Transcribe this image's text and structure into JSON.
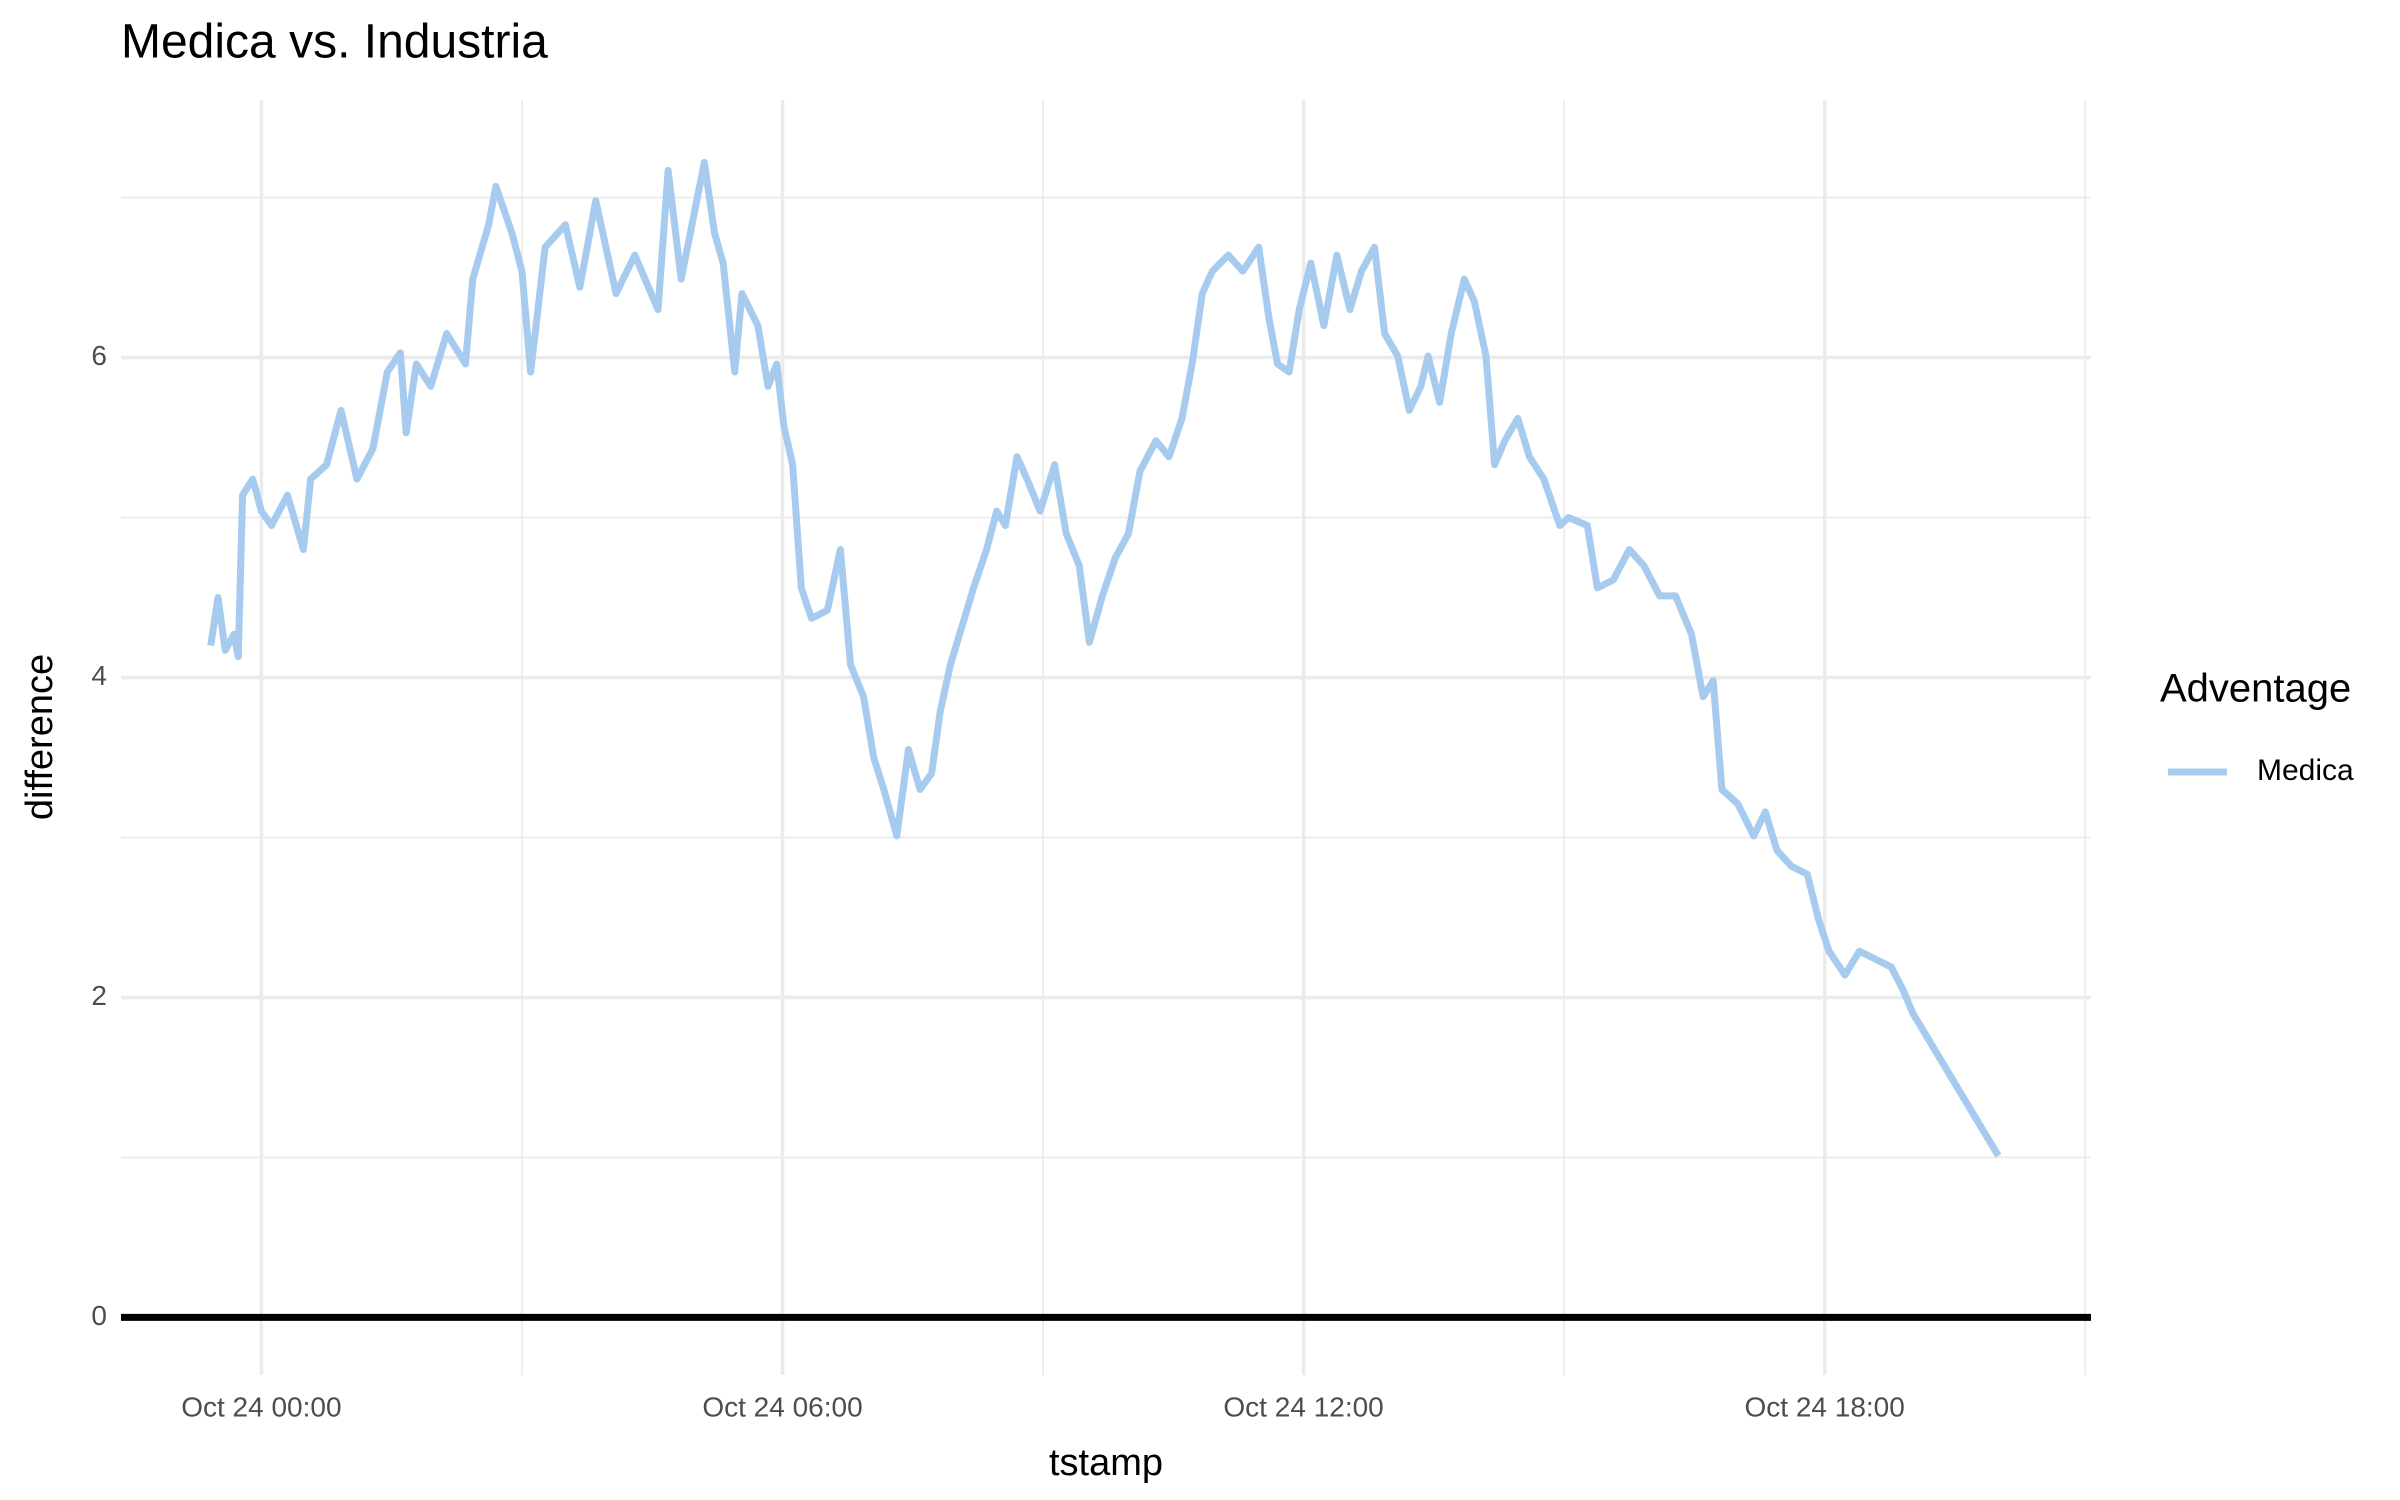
{
  "chart_data": {
    "type": "line",
    "title": "Medica vs. Industria",
    "x_label": "tstamp",
    "y_label": "difference",
    "legend_title": "Adventage",
    "legend_position": "right",
    "grid": true,
    "minor_grid": true,
    "hline": 0,
    "hline_color": "#000000",
    "xlim": [
      "Oct 23 22:23",
      "Oct 24 21:04"
    ],
    "xticks": [
      "Oct 24 00:00",
      "Oct 24 06:00",
      "Oct 24 12:00",
      "Oct 24 18:00"
    ],
    "ylim": [
      -0.36,
      7.61
    ],
    "yticks": [
      0,
      2,
      4,
      6
    ],
    "x": [
      "Oct 23 23:25",
      "Oct 23 23:30",
      "Oct 23 23:35",
      "Oct 23 23:41",
      "Oct 23 23:44",
      "Oct 23 23:47",
      "Oct 23 23:54",
      "Oct 24 00:00",
      "Oct 24 00:07",
      "Oct 24 00:18",
      "Oct 24 00:29",
      "Oct 24 00:34",
      "Oct 24 00:45",
      "Oct 24 00:55",
      "Oct 24 01:06",
      "Oct 24 01:17",
      "Oct 24 01:27",
      "Oct 24 01:36",
      "Oct 24 01:40",
      "Oct 24 01:47",
      "Oct 24 01:57",
      "Oct 24 02:08",
      "Oct 24 02:21",
      "Oct 24 02:26",
      "Oct 24 02:37",
      "Oct 24 02:42",
      "Oct 24 02:53",
      "Oct 24 03:00",
      "Oct 24 03:06",
      "Oct 24 03:16",
      "Oct 24 03:30",
      "Oct 24 03:40",
      "Oct 24 03:51",
      "Oct 24 04:05",
      "Oct 24 04:18",
      "Oct 24 04:34",
      "Oct 24 04:41",
      "Oct 24 04:50",
      "Oct 24 05:06",
      "Oct 24 05:13",
      "Oct 24 05:19",
      "Oct 24 05:27",
      "Oct 24 05:32",
      "Oct 24 05:43",
      "Oct 24 05:50",
      "Oct 24 05:56",
      "Oct 24 06:01",
      "Oct 24 06:07",
      "Oct 24 06:13",
      "Oct 24 06:20",
      "Oct 24 06:31",
      "Oct 24 06:40",
      "Oct 24 06:47",
      "Oct 24 06:56",
      "Oct 24 07:03",
      "Oct 24 07:10",
      "Oct 24 07:19",
      "Oct 24 07:27",
      "Oct 24 07:35",
      "Oct 24 07:43",
      "Oct 24 07:49",
      "Oct 24 07:56",
      "Oct 24 08:04",
      "Oct 24 08:12",
      "Oct 24 08:21",
      "Oct 24 08:28",
      "Oct 24 08:34",
      "Oct 24 08:42",
      "Oct 24 08:49",
      "Oct 24 08:58",
      "Oct 24 09:08",
      "Oct 24 09:16",
      "Oct 24 09:25",
      "Oct 24 09:32",
      "Oct 24 09:41",
      "Oct 24 09:50",
      "Oct 24 09:59",
      "Oct 24 10:07",
      "Oct 24 10:18",
      "Oct 24 10:27",
      "Oct 24 10:36",
      "Oct 24 10:43",
      "Oct 24 10:50",
      "Oct 24 10:57",
      "Oct 24 11:08",
      "Oct 24 11:18",
      "Oct 24 11:29",
      "Oct 24 11:36",
      "Oct 24 11:42",
      "Oct 24 11:50",
      "Oct 24 11:57",
      "Oct 24 12:05",
      "Oct 24 12:14",
      "Oct 24 12:23",
      "Oct 24 12:32",
      "Oct 24 12:40",
      "Oct 24 12:49",
      "Oct 24 12:56",
      "Oct 24 13:05",
      "Oct 24 13:13",
      "Oct 24 13:21",
      "Oct 24 13:26",
      "Oct 24 13:34",
      "Oct 24 13:42",
      "Oct 24 13:51",
      "Oct 24 13:58",
      "Oct 24 14:06",
      "Oct 24 14:12",
      "Oct 24 14:19",
      "Oct 24 14:28",
      "Oct 24 14:36",
      "Oct 24 14:46",
      "Oct 24 14:57",
      "Oct 24 15:03",
      "Oct 24 15:16",
      "Oct 24 15:23",
      "Oct 24 15:34",
      "Oct 24 15:45",
      "Oct 24 15:55",
      "Oct 24 16:06",
      "Oct 24 16:17",
      "Oct 24 16:28",
      "Oct 24 16:36",
      "Oct 24 16:43",
      "Oct 24 16:49",
      "Oct 24 17:00",
      "Oct 24 17:11",
      "Oct 24 17:19",
      "Oct 24 17:27",
      "Oct 24 17:37",
      "Oct 24 17:48",
      "Oct 24 17:56",
      "Oct 24 18:03",
      "Oct 24 18:14",
      "Oct 24 18:24",
      "Oct 24 18:35",
      "Oct 24 18:46",
      "Oct 24 18:54",
      "Oct 24 19:01",
      "Oct 24 20:00"
    ],
    "series": [
      {
        "name": "Medica",
        "color": "#a6cbef",
        "values": [
          4.2,
          4.5,
          4.17,
          4.27,
          4.13,
          5.14,
          5.24,
          5.04,
          4.95,
          5.14,
          4.8,
          5.24,
          5.33,
          5.67,
          5.24,
          5.43,
          5.91,
          6.03,
          5.53,
          5.96,
          5.82,
          6.15,
          5.96,
          6.49,
          6.83,
          7.07,
          6.78,
          6.54,
          5.91,
          6.69,
          6.83,
          6.44,
          6.98,
          6.4,
          6.64,
          6.3,
          7.17,
          6.49,
          7.22,
          6.78,
          6.59,
          5.91,
          6.4,
          6.2,
          5.82,
          5.96,
          5.57,
          5.33,
          4.56,
          4.37,
          4.42,
          4.8,
          4.08,
          3.88,
          3.5,
          3.3,
          3.01,
          3.55,
          3.3,
          3.4,
          3.79,
          4.08,
          4.32,
          4.56,
          4.8,
          5.04,
          4.95,
          5.38,
          5.24,
          5.04,
          5.33,
          4.9,
          4.7,
          4.22,
          4.51,
          4.75,
          4.9,
          5.29,
          5.48,
          5.38,
          5.62,
          5.96,
          6.4,
          6.54,
          6.64,
          6.54,
          6.69,
          6.25,
          5.96,
          5.91,
          6.3,
          6.59,
          6.2,
          6.64,
          6.3,
          6.54,
          6.69,
          6.15,
          6.01,
          5.67,
          5.82,
          6.01,
          5.72,
          6.15,
          6.49,
          6.35,
          6.01,
          5.33,
          5.48,
          5.62,
          5.38,
          5.24,
          4.95,
          5.0,
          4.95,
          4.56,
          4.61,
          4.8,
          4.7,
          4.51,
          4.51,
          4.27,
          3.88,
          3.98,
          3.3,
          3.21,
          3.01,
          3.16,
          2.92,
          2.82,
          2.77,
          2.48,
          2.29,
          2.14,
          2.29,
          2.24,
          2.19,
          2.05,
          1.9,
          1.01
        ]
      }
    ]
  }
}
